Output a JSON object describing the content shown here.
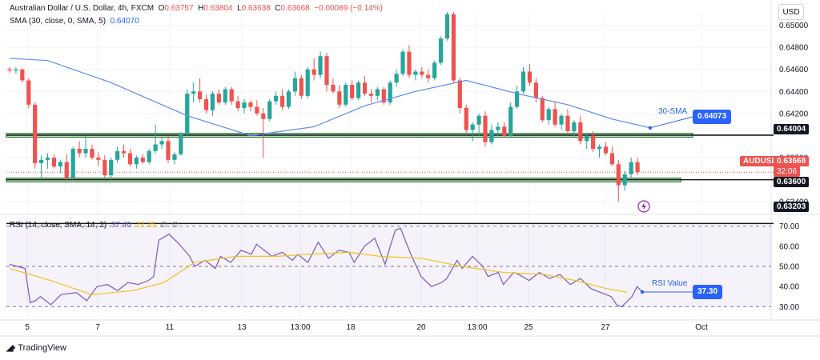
{
  "header": {
    "symbol_line": "Australian Dollar / U.S. Dollar, 4h, FXCM",
    "o_label": "O",
    "o_value": "0.63757",
    "h_label": "H",
    "h_value": "0.63804",
    "l_label": "L",
    "l_value": "0.63638",
    "c_label": "C",
    "c_value": "0.63668",
    "change": "−0.00089 (−0.14%)",
    "sma_label": "SMA (30, close, 0, SMA, 5)",
    "sma_value": "0.64070"
  },
  "rsi_legend": {
    "label": "RSI (14, close, SMA, 14, 2)",
    "rsi": "37.40",
    "ma": "37.16",
    "z1": "∅",
    "z2": "∅"
  },
  "currency_button": "USD",
  "brand": "TradingView",
  "price_axis": {
    "ticks": [
      "0.65000",
      "0.64800",
      "0.64600",
      "0.64400",
      "0.64200",
      "0.63800",
      "0.63400"
    ]
  },
  "rsi_axis": {
    "ticks": [
      "70.00",
      "60.00",
      "50.00",
      "40.00",
      "30.00"
    ]
  },
  "time_axis": {
    "labels": [
      "5",
      "7",
      "11",
      "13",
      "13:00",
      "18",
      "20",
      "13:00",
      "25",
      "27",
      "Oct"
    ]
  },
  "tags": {
    "sma_tag": "0.64073",
    "sma_annotation": "30-SMA",
    "level_upper": "0.64004",
    "symbol_tag": "AUDUSD",
    "last_price": "0.63668",
    "countdown": "32:06",
    "level_lower": "0.63600",
    "level_bottom": "0.63203",
    "rsi_annotation": "RSI Value",
    "rsi_tag": "37.30"
  },
  "colors": {
    "up": "#26a69a",
    "down": "#ef5350",
    "sma": "#5b8def",
    "rsi": "#7e57c2",
    "rsi_ma": "#f0c419",
    "zone": "#2e7d32",
    "tag_blue": "#2962ff"
  },
  "chart_data": {
    "type": "candlestick",
    "title": "Australian Dollar / U.S. Dollar, 4h, FXCM",
    "price_range": [
      0.633,
      0.6512
    ],
    "levels": [
      0.64004,
      0.636,
      0.63203
    ],
    "zones": [
      [
        0.63985,
        0.6402
      ],
      [
        0.6358,
        0.63615
      ]
    ],
    "candles": [
      [
        0.646,
        0.6462,
        0.6457,
        0.6459
      ],
      [
        0.6459,
        0.6462,
        0.6456,
        0.646
      ],
      [
        0.646,
        0.6461,
        0.6448,
        0.645
      ],
      [
        0.645,
        0.6452,
        0.6425,
        0.6428
      ],
      [
        0.6428,
        0.643,
        0.637,
        0.6375
      ],
      [
        0.6375,
        0.6382,
        0.636,
        0.6378
      ],
      [
        0.6378,
        0.6384,
        0.637,
        0.638
      ],
      [
        0.638,
        0.6383,
        0.637,
        0.6372
      ],
      [
        0.6372,
        0.6378,
        0.6366,
        0.6376
      ],
      [
        0.6376,
        0.6383,
        0.636,
        0.6362
      ],
      [
        0.6362,
        0.639,
        0.636,
        0.6388
      ],
      [
        0.6388,
        0.6395,
        0.638,
        0.6384
      ],
      [
        0.6384,
        0.64,
        0.638,
        0.6388
      ],
      [
        0.6388,
        0.6392,
        0.6378,
        0.638
      ],
      [
        0.638,
        0.6385,
        0.6372,
        0.6378
      ],
      [
        0.6378,
        0.6382,
        0.6362,
        0.6364
      ],
      [
        0.6364,
        0.638,
        0.636,
        0.6378
      ],
      [
        0.6378,
        0.639,
        0.6375,
        0.6386
      ],
      [
        0.6386,
        0.6392,
        0.638,
        0.6384
      ],
      [
        0.6384,
        0.6388,
        0.6372,
        0.6374
      ],
      [
        0.6374,
        0.6382,
        0.637,
        0.638
      ],
      [
        0.638,
        0.6383,
        0.6374,
        0.6376
      ],
      [
        0.6376,
        0.6388,
        0.6374,
        0.6386
      ],
      [
        0.6386,
        0.641,
        0.6384,
        0.6392
      ],
      [
        0.6392,
        0.6398,
        0.6388,
        0.6395
      ],
      [
        0.6395,
        0.64,
        0.6375,
        0.6378
      ],
      [
        0.6378,
        0.6385,
        0.6374,
        0.6383
      ],
      [
        0.6383,
        0.6403,
        0.6382,
        0.6401
      ],
      [
        0.6401,
        0.6442,
        0.64,
        0.6438
      ],
      [
        0.6438,
        0.6448,
        0.643,
        0.644
      ],
      [
        0.644,
        0.6452,
        0.643,
        0.6433
      ],
      [
        0.6433,
        0.6437,
        0.642,
        0.6423
      ],
      [
        0.6423,
        0.644,
        0.6418,
        0.6438
      ],
      [
        0.6438,
        0.6442,
        0.6428,
        0.643
      ],
      [
        0.643,
        0.6444,
        0.6428,
        0.6442
      ],
      [
        0.6442,
        0.6444,
        0.6428,
        0.6431
      ],
      [
        0.6431,
        0.6436,
        0.6422,
        0.6425
      ],
      [
        0.6425,
        0.6433,
        0.642,
        0.643
      ],
      [
        0.643,
        0.6432,
        0.6422,
        0.6426
      ],
      [
        0.6426,
        0.6432,
        0.6418,
        0.642
      ],
      [
        0.642,
        0.6425,
        0.638,
        0.6415
      ],
      [
        0.6415,
        0.6433,
        0.6413,
        0.6431
      ],
      [
        0.6431,
        0.644,
        0.6428,
        0.6436
      ],
      [
        0.6436,
        0.6442,
        0.6423,
        0.6426
      ],
      [
        0.6426,
        0.6442,
        0.6424,
        0.644
      ],
      [
        0.644,
        0.6458,
        0.6436,
        0.6452
      ],
      [
        0.6452,
        0.6455,
        0.6433,
        0.6436
      ],
      [
        0.6436,
        0.6462,
        0.6434,
        0.646
      ],
      [
        0.646,
        0.647,
        0.645,
        0.6455
      ],
      [
        0.6455,
        0.6476,
        0.6452,
        0.6472
      ],
      [
        0.6472,
        0.6475,
        0.644,
        0.6446
      ],
      [
        0.6446,
        0.6452,
        0.6438,
        0.644
      ],
      [
        0.644,
        0.6446,
        0.6425,
        0.6428
      ],
      [
        0.6428,
        0.6448,
        0.6426,
        0.6446
      ],
      [
        0.6446,
        0.645,
        0.6432,
        0.6434
      ],
      [
        0.6434,
        0.645,
        0.6432,
        0.6448
      ],
      [
        0.6448,
        0.6454,
        0.6436,
        0.6438
      ],
      [
        0.6438,
        0.6442,
        0.643,
        0.6436
      ],
      [
        0.6436,
        0.6444,
        0.6432,
        0.6442
      ],
      [
        0.6442,
        0.6444,
        0.6428,
        0.643
      ],
      [
        0.643,
        0.645,
        0.6428,
        0.6448
      ],
      [
        0.6448,
        0.646,
        0.6444,
        0.6456
      ],
      [
        0.6456,
        0.6478,
        0.6454,
        0.6476
      ],
      [
        0.6476,
        0.6482,
        0.6452,
        0.6455
      ],
      [
        0.6455,
        0.646,
        0.645,
        0.6458
      ],
      [
        0.6458,
        0.6462,
        0.6452,
        0.6455
      ],
      [
        0.6455,
        0.646,
        0.6448,
        0.6452
      ],
      [
        0.6452,
        0.6468,
        0.645,
        0.6466
      ],
      [
        0.6466,
        0.649,
        0.6464,
        0.6488
      ],
      [
        0.6488,
        0.6512,
        0.6486,
        0.651
      ],
      [
        0.651,
        0.6512,
        0.6448,
        0.645
      ],
      [
        0.645,
        0.6452,
        0.642,
        0.6425
      ],
      [
        0.6425,
        0.6428,
        0.6402,
        0.6405
      ],
      [
        0.6405,
        0.6412,
        0.6395,
        0.641
      ],
      [
        0.641,
        0.642,
        0.64,
        0.6418
      ],
      [
        0.6418,
        0.6422,
        0.639,
        0.6394
      ],
      [
        0.6394,
        0.641,
        0.6392,
        0.6405
      ],
      [
        0.6405,
        0.6412,
        0.64,
        0.6408
      ],
      [
        0.6408,
        0.6412,
        0.6398,
        0.64
      ],
      [
        0.64,
        0.643,
        0.6398,
        0.6426
      ],
      [
        0.6426,
        0.6445,
        0.6424,
        0.644
      ],
      [
        0.644,
        0.6462,
        0.6438,
        0.6458
      ],
      [
        0.6458,
        0.6465,
        0.6445,
        0.6448
      ],
      [
        0.6448,
        0.6452,
        0.643,
        0.6434
      ],
      [
        0.6434,
        0.6436,
        0.6412,
        0.6414
      ],
      [
        0.6414,
        0.6426,
        0.641,
        0.6424
      ],
      [
        0.6424,
        0.643,
        0.6408,
        0.641
      ],
      [
        0.641,
        0.642,
        0.6405,
        0.6418
      ],
      [
        0.6418,
        0.6424,
        0.6402,
        0.6404
      ],
      [
        0.6404,
        0.6414,
        0.6398,
        0.6412
      ],
      [
        0.6412,
        0.6418,
        0.6392,
        0.6395
      ],
      [
        0.6395,
        0.6402,
        0.6388,
        0.64
      ],
      [
        0.64,
        0.6404,
        0.6385,
        0.6388
      ],
      [
        0.6388,
        0.6392,
        0.638,
        0.639
      ],
      [
        0.639,
        0.6394,
        0.6382,
        0.6384
      ],
      [
        0.6384,
        0.639,
        0.6372,
        0.6374
      ],
      [
        0.6374,
        0.6378,
        0.634,
        0.6355
      ],
      [
        0.6355,
        0.6368,
        0.635,
        0.6365
      ],
      [
        0.6365,
        0.638,
        0.6362,
        0.6376
      ],
      [
        0.6376,
        0.638,
        0.6364,
        0.6367
      ]
    ],
    "sma30": [
      [
        0,
        0.647
      ],
      [
        6,
        0.6468
      ],
      [
        16,
        0.6448
      ],
      [
        28,
        0.6418
      ],
      [
        38,
        0.64
      ],
      [
        48,
        0.6408
      ],
      [
        56,
        0.6427
      ],
      [
        64,
        0.644
      ],
      [
        72,
        0.645
      ],
      [
        80,
        0.6438
      ],
      [
        88,
        0.6428
      ],
      [
        95,
        0.6415
      ],
      [
        101,
        0.6407
      ]
    ],
    "rsi_range": [
      25,
      75
    ],
    "rsi": [
      [
        0,
        51
      ],
      [
        3,
        49
      ],
      [
        4,
        32
      ],
      [
        5,
        33
      ],
      [
        6,
        35
      ],
      [
        8,
        31
      ],
      [
        10,
        36
      ],
      [
        13,
        37
      ],
      [
        15,
        33
      ],
      [
        17,
        40
      ],
      [
        19,
        41
      ],
      [
        21,
        38
      ],
      [
        23,
        42
      ],
      [
        25,
        41
      ],
      [
        27,
        43
      ],
      [
        28,
        45
      ],
      [
        29,
        63
      ],
      [
        31,
        66
      ],
      [
        33,
        61
      ],
      [
        35,
        55
      ],
      [
        36,
        50
      ],
      [
        38,
        53
      ],
      [
        40,
        49
      ],
      [
        41,
        55
      ],
      [
        43,
        52
      ],
      [
        45,
        58
      ],
      [
        47,
        56
      ],
      [
        48,
        61
      ],
      [
        49,
        59
      ],
      [
        51,
        55
      ],
      [
        53,
        57
      ],
      [
        55,
        53
      ],
      [
        56,
        56
      ],
      [
        58,
        52
      ],
      [
        60,
        62
      ],
      [
        62,
        54
      ],
      [
        64,
        58
      ],
      [
        66,
        57
      ],
      [
        67,
        52
      ],
      [
        69,
        60
      ],
      [
        71,
        64
      ],
      [
        73,
        51
      ],
      [
        74,
        60
      ],
      [
        75,
        68
      ],
      [
        76,
        69
      ],
      [
        78,
        56
      ],
      [
        80,
        45
      ],
      [
        82,
        40
      ],
      [
        84,
        42
      ],
      [
        85,
        44
      ],
      [
        87,
        53
      ],
      [
        88,
        49
      ],
      [
        90,
        55
      ],
      [
        92,
        50
      ],
      [
        93,
        45
      ],
      [
        95,
        47
      ],
      [
        96,
        41
      ],
      [
        98,
        47
      ],
      [
        99,
        46
      ],
      [
        101,
        43
      ],
      [
        103,
        47
      ],
      [
        105,
        44
      ],
      [
        107,
        46
      ],
      [
        109,
        41
      ],
      [
        111,
        44
      ],
      [
        113,
        39
      ],
      [
        115,
        37
      ],
      [
        117,
        35
      ],
      [
        118,
        31
      ],
      [
        119,
        30
      ],
      [
        121,
        35
      ],
      [
        122,
        40
      ],
      [
        123,
        37.3
      ]
    ],
    "rsi_ma": [
      [
        0,
        49
      ],
      [
        8,
        43
      ],
      [
        16,
        36
      ],
      [
        24,
        38
      ],
      [
        30,
        42
      ],
      [
        36,
        52
      ],
      [
        44,
        55
      ],
      [
        52,
        55
      ],
      [
        58,
        56
      ],
      [
        66,
        57
      ],
      [
        72,
        55
      ],
      [
        80,
        54
      ],
      [
        88,
        50
      ],
      [
        96,
        47
      ],
      [
        104,
        46
      ],
      [
        110,
        43
      ],
      [
        116,
        39
      ],
      [
        120,
        37.2
      ]
    ]
  }
}
